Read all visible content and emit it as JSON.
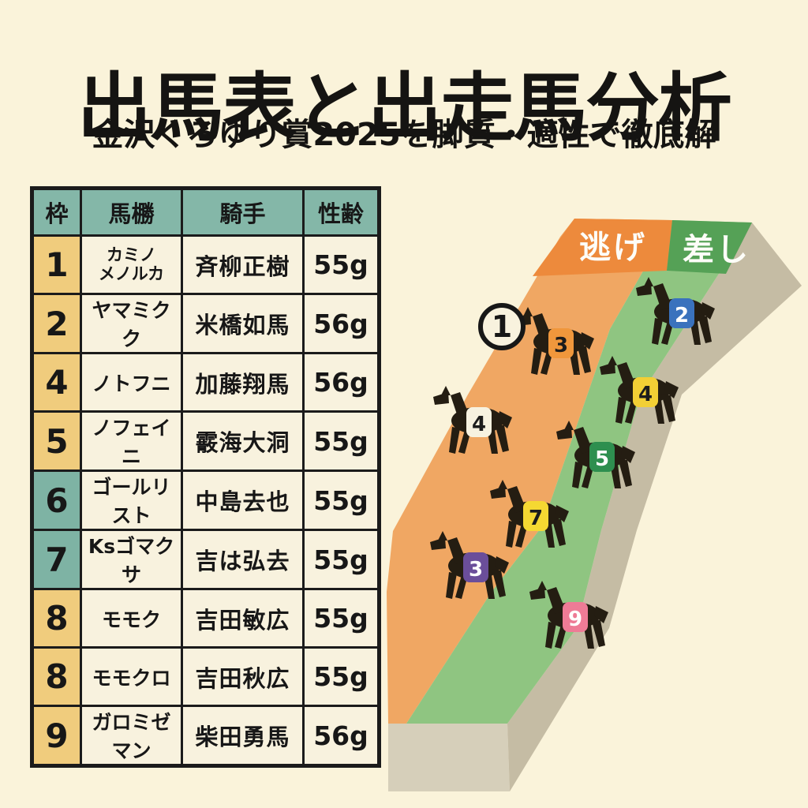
{
  "header": {
    "title": "出馬表と出走馬分析",
    "subtitle": "金沢くろゆり賞2025を脚質・適性で徹底解"
  },
  "table": {
    "columns": [
      "枠",
      "馬橳",
      "騎手",
      "性齢"
    ],
    "rows": [
      {
        "waku": "1",
        "waku_color": "yellow",
        "horse": "カミノ\nメノルカ",
        "jockey": "斉柳正樹",
        "weight": "55g"
      },
      {
        "waku": "2",
        "waku_color": "yellow",
        "horse": "ヤマミクク",
        "jockey": "米橋如馬",
        "weight": "56g"
      },
      {
        "waku": "4",
        "waku_color": "yellow",
        "horse": "ノトフニ",
        "jockey": "加藤翔馬",
        "weight": "56g"
      },
      {
        "waku": "5",
        "waku_color": "yellow",
        "horse": "ノフェイニ",
        "jockey": "霰海大洞",
        "weight": "55g"
      },
      {
        "waku": "6",
        "waku_color": "teal",
        "horse": "ゴールリスト",
        "jockey": "中島去也",
        "weight": "55g"
      },
      {
        "waku": "7",
        "waku_color": "teal",
        "horse": "Ksゴマクサ",
        "jockey": "吉は弘去",
        "weight": "55g"
      },
      {
        "waku": "8",
        "waku_color": "yellow",
        "horse": "モモク",
        "jockey": "吉田敏広",
        "weight": "55g"
      },
      {
        "waku": "8",
        "waku_color": "yellow",
        "horse": "モモクロ",
        "jockey": "吉田秋広",
        "weight": "55g"
      },
      {
        "waku": "9",
        "waku_color": "yellow",
        "horse": "ガロミゼマン",
        "jockey": "柴田勇馬",
        "weight": "56g"
      }
    ]
  },
  "diagram": {
    "zones": [
      {
        "label": "逃げ",
        "band_color": "#ed8a3c",
        "lane_color": "#f0a763"
      },
      {
        "label": "差し",
        "band_color": "#55a156",
        "lane_color": "#8fc581"
      }
    ],
    "ground": {
      "side_color": "#c5bca4",
      "front_color": "#d6cfba"
    },
    "horses": [
      {
        "number": "3",
        "badge_bg": "#f0973c",
        "badge_fg": "#1c1c1c",
        "zone": "逃げ",
        "leader_circle": "1"
      },
      {
        "number": "2",
        "badge_bg": "#3a72bd",
        "badge_fg": "#ffffff",
        "zone": "差し"
      },
      {
        "number": "4",
        "badge_bg": "#f2cf35",
        "badge_fg": "#1c1c1c",
        "zone": "差し"
      },
      {
        "number": "4",
        "badge_bg": "#f7f2e0",
        "badge_fg": "#1c1c1c",
        "zone": "逃げ"
      },
      {
        "number": "5",
        "badge_bg": "#2e8f4f",
        "badge_fg": "#ffffff",
        "zone": "差し"
      },
      {
        "number": "7",
        "badge_bg": "#f5d832",
        "badge_fg": "#1c1c1c",
        "zone": "差し"
      },
      {
        "number": "3",
        "badge_bg": "#6b4e9a",
        "badge_fg": "#ffffff",
        "zone": "逃げ"
      },
      {
        "number": "9",
        "badge_bg": "#ee7b96",
        "badge_fg": "#ffffff",
        "zone": "差し"
      }
    ]
  },
  "colors": {
    "background": "#faf3da",
    "cell_bg": "#f8f2de",
    "cell_yellow": "#f0cc7d",
    "cell_teal": "#7eb3a4",
    "header_teal": "#84b7a8",
    "border": "#1b1b1b",
    "text": "#171717",
    "horse_silhouette": "#241d12",
    "zone_label_text": "#fdfdf8"
  }
}
